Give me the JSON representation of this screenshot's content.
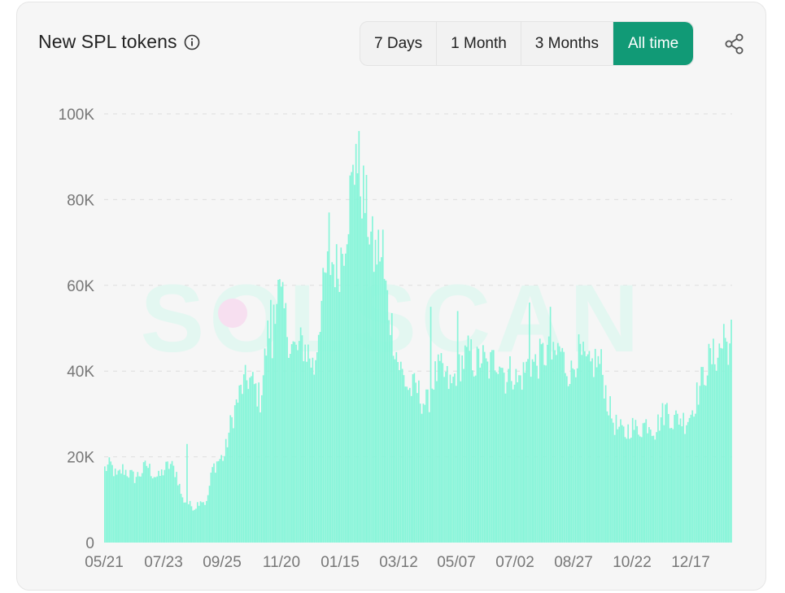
{
  "header": {
    "title": "New SPL tokens",
    "info_icon": "info-icon",
    "share_icon": "share-icon"
  },
  "tabs": [
    {
      "label": "7 Days",
      "active": false
    },
    {
      "label": "1 Month",
      "active": false
    },
    {
      "label": "3 Months",
      "active": false
    },
    {
      "label": "All time",
      "active": true
    }
  ],
  "watermark": "SOLSCAN",
  "colors": {
    "bar": "#87f5d9",
    "accent": "#119a76",
    "grid": "#dedede",
    "card_bg": "#f6f6f6"
  },
  "chart_data": {
    "type": "bar",
    "title": "New SPL tokens",
    "xlabel": "",
    "ylabel": "",
    "ylim": [
      0,
      100000
    ],
    "yticks": [
      {
        "label": "0",
        "value": 0
      },
      {
        "label": "20K",
        "value": 20000
      },
      {
        "label": "40K",
        "value": 40000
      },
      {
        "label": "60K",
        "value": 60000
      },
      {
        "label": "80K",
        "value": 80000
      },
      {
        "label": "100K",
        "value": 100000
      }
    ],
    "xtick_labels": [
      "05/21",
      "07/23",
      "09/25",
      "11/20",
      "01/15",
      "03/12",
      "05/07",
      "07/02",
      "08/27",
      "10/22",
      "12/17"
    ],
    "grid": true,
    "legend": "none",
    "anchors": [
      [
        0,
        17000
      ],
      [
        4,
        18000
      ],
      [
        8,
        15000
      ],
      [
        12,
        17000
      ],
      [
        16,
        16000
      ],
      [
        20,
        15000
      ],
      [
        24,
        16000
      ],
      [
        28,
        18000
      ],
      [
        32,
        16000
      ],
      [
        36,
        15000
      ],
      [
        40,
        17000
      ],
      [
        44,
        18000
      ],
      [
        48,
        16000
      ],
      [
        52,
        10000
      ],
      [
        56,
        9000
      ],
      [
        60,
        8000
      ],
      [
        64,
        10000
      ],
      [
        68,
        9000
      ],
      [
        72,
        17000
      ],
      [
        76,
        19000
      ],
      [
        80,
        20000
      ],
      [
        84,
        27000
      ],
      [
        88,
        32000
      ],
      [
        92,
        36000
      ],
      [
        96,
        38000
      ],
      [
        100,
        36000
      ],
      [
        104,
        33000
      ],
      [
        108,
        45000
      ],
      [
        112,
        55000
      ],
      [
        116,
        58000
      ],
      [
        120,
        53000
      ],
      [
        124,
        46000
      ],
      [
        128,
        44000
      ],
      [
        132,
        46000
      ],
      [
        136,
        44000
      ],
      [
        140,
        40000
      ],
      [
        144,
        53000
      ],
      [
        148,
        62000
      ],
      [
        152,
        65000
      ],
      [
        156,
        63000
      ],
      [
        160,
        70000
      ],
      [
        164,
        80000
      ],
      [
        168,
        87000
      ],
      [
        172,
        82000
      ],
      [
        176,
        75000
      ],
      [
        180,
        66000
      ],
      [
        184,
        68000
      ],
      [
        188,
        58000
      ],
      [
        192,
        50000
      ],
      [
        196,
        42000
      ],
      [
        200,
        38000
      ],
      [
        204,
        35000
      ],
      [
        208,
        36000
      ],
      [
        212,
        33000
      ],
      [
        216,
        32000
      ],
      [
        220,
        38000
      ],
      [
        224,
        40000
      ],
      [
        228,
        38000
      ],
      [
        232,
        36000
      ],
      [
        236,
        41000
      ],
      [
        240,
        42000
      ],
      [
        244,
        44000
      ],
      [
        248,
        41000
      ],
      [
        252,
        43000
      ],
      [
        256,
        40000
      ],
      [
        260,
        42000
      ],
      [
        264,
        43000
      ],
      [
        268,
        38000
      ],
      [
        272,
        40000
      ],
      [
        276,
        37000
      ],
      [
        280,
        39000
      ],
      [
        284,
        42000
      ],
      [
        288,
        41000
      ],
      [
        292,
        43000
      ],
      [
        296,
        44000
      ],
      [
        300,
        42000
      ],
      [
        304,
        45000
      ],
      [
        308,
        41000
      ],
      [
        312,
        39000
      ],
      [
        316,
        44000
      ],
      [
        320,
        42000
      ],
      [
        324,
        40000
      ],
      [
        328,
        42000
      ],
      [
        332,
        41000
      ],
      [
        336,
        33000
      ],
      [
        340,
        28000
      ],
      [
        344,
        26000
      ],
      [
        348,
        25000
      ],
      [
        352,
        27000
      ],
      [
        356,
        26000
      ],
      [
        360,
        27000
      ],
      [
        364,
        28000
      ],
      [
        368,
        26000
      ],
      [
        372,
        29000
      ],
      [
        376,
        31000
      ],
      [
        380,
        28000
      ],
      [
        384,
        29000
      ],
      [
        388,
        28000
      ],
      [
        392,
        30000
      ],
      [
        396,
        34000
      ],
      [
        400,
        38000
      ],
      [
        404,
        42000
      ],
      [
        408,
        43000
      ],
      [
        412,
        45000
      ],
      [
        416,
        46000
      ],
      [
        419,
        45000
      ]
    ],
    "n_bars": 420,
    "spikes": [
      [
        55,
        23000
      ],
      [
        112,
        43000
      ],
      [
        150,
        77000
      ],
      [
        168,
        93000
      ],
      [
        170,
        96000
      ],
      [
        186,
        73000
      ],
      [
        218,
        55000
      ],
      [
        236,
        54000
      ],
      [
        284,
        56000
      ],
      [
        298,
        55000
      ],
      [
        414,
        51000
      ],
      [
        419,
        52000
      ]
    ]
  }
}
